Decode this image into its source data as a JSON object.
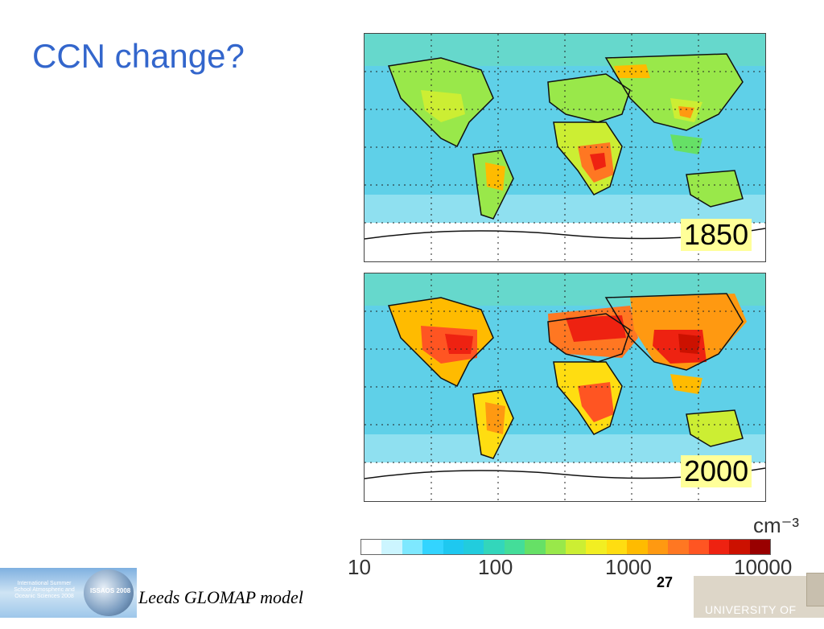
{
  "title": "CCN change?",
  "maps": [
    {
      "year": "1850"
    },
    {
      "year": "2000"
    }
  ],
  "colorbar": {
    "unit": "cm⁻³",
    "tick_labels": [
      "10",
      "100",
      "1000",
      "10000"
    ],
    "colors": [
      "#ffffff",
      "#ccf5ff",
      "#7ee8ff",
      "#33d4ff",
      "#1ec8f0",
      "#22ccdd",
      "#33d6bb",
      "#44dd99",
      "#66e066",
      "#99e84a",
      "#ccee33",
      "#f2ee22",
      "#ffdd11",
      "#ffbb00",
      "#ff9911",
      "#ff7722",
      "#ff5522",
      "#ee2211",
      "#cc1100",
      "#990000"
    ]
  },
  "footer": {
    "caption": "Leeds GLOMAP model",
    "page_number": "27",
    "school_logo_text": "International Summer School Atmospheric and Oceanic Sciences 2008",
    "school_logo_badge": "ISSAOS 2008",
    "university": "UNIVERSITY OF LEEDS"
  }
}
